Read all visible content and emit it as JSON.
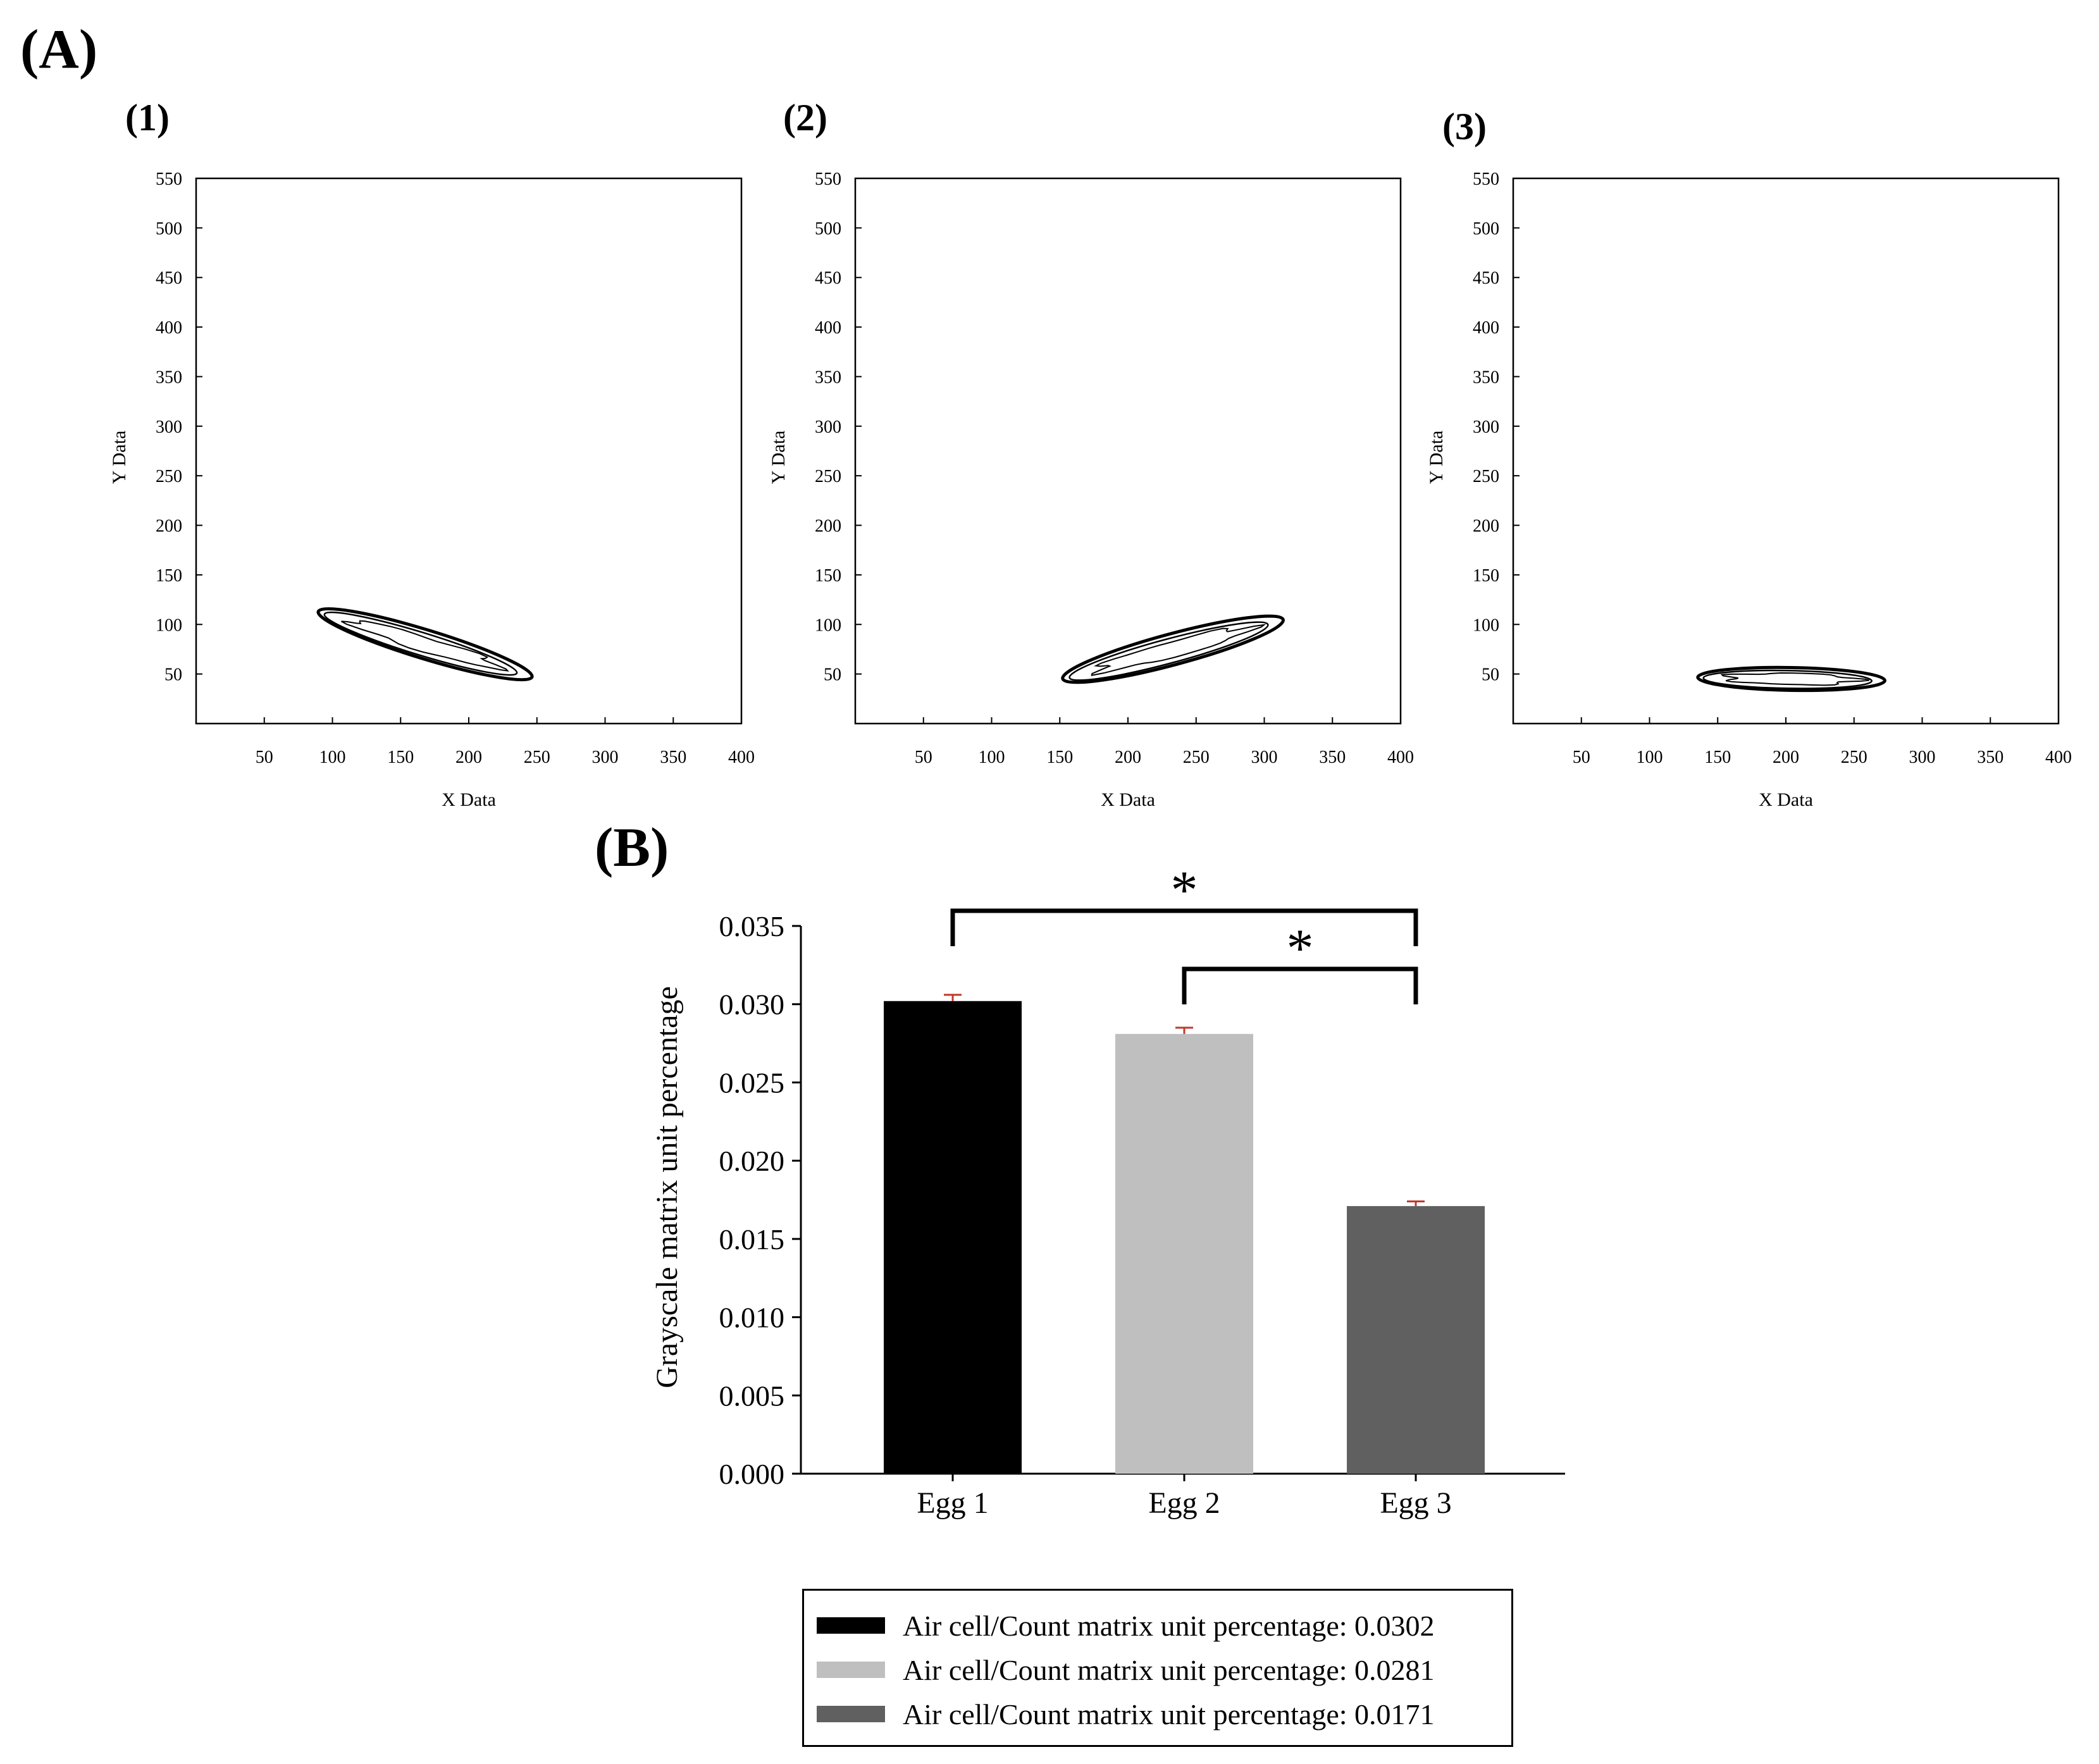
{
  "figure": {
    "panel_a_label": "(A)",
    "panel_b_label": "(B)",
    "contour_sublabels": [
      "(1)",
      "(2)",
      "(3)"
    ]
  },
  "chart_data": [
    {
      "type": "contour",
      "panel": "(1)",
      "xlabel": "X Data",
      "ylabel": "Y Data",
      "xlim": [
        0,
        400
      ],
      "ylim": [
        0,
        550
      ],
      "xticks": [
        50,
        100,
        150,
        200,
        250,
        300,
        350,
        400
      ],
      "yticks": [
        50,
        100,
        150,
        200,
        250,
        300,
        350,
        400,
        450,
        500,
        550
      ],
      "region": {
        "center": [
          168,
          80
        ],
        "x_range": [
          88,
          248
        ],
        "y_range": [
          55,
          108
        ],
        "tilt": "descending"
      }
    },
    {
      "type": "contour",
      "panel": "(2)",
      "xlabel": "X Data",
      "ylabel": "Y Data",
      "xlim": [
        0,
        400
      ],
      "ylim": [
        0,
        550
      ],
      "xticks": [
        50,
        100,
        150,
        200,
        250,
        300,
        350,
        400
      ],
      "yticks": [
        50,
        100,
        150,
        200,
        250,
        300,
        350,
        400,
        450,
        500,
        550
      ],
      "region": {
        "center": [
          233,
          75
        ],
        "x_range": [
          150,
          315
        ],
        "y_range": [
          45,
          102
        ],
        "tilt": "ascending"
      }
    },
    {
      "type": "contour",
      "panel": "(3)",
      "xlabel": "X Data",
      "ylabel": "Y Data",
      "xlim": [
        0,
        400
      ],
      "ylim": [
        0,
        550
      ],
      "xticks": [
        50,
        100,
        150,
        200,
        250,
        300,
        350,
        400
      ],
      "yticks": [
        50,
        100,
        150,
        200,
        250,
        300,
        350,
        400,
        450,
        500,
        550
      ],
      "region": {
        "center": [
          204,
          45
        ],
        "x_range": [
          133,
          273
        ],
        "y_range": [
          28,
          63
        ],
        "tilt": "flat"
      }
    },
    {
      "type": "bar",
      "panel": "(B)",
      "categories": [
        "Egg 1",
        "Egg 2",
        "Egg 3"
      ],
      "values": [
        0.0302,
        0.0281,
        0.0171
      ],
      "errors": [
        0.0004,
        0.0004,
        0.0003
      ],
      "colors": [
        "#000000",
        "#bfbfbf",
        "#606060"
      ],
      "error_color": "#c0392b",
      "ylabel": "Grayscale matrix unit percentage",
      "xlabel": "",
      "ylim": [
        0,
        0.035
      ],
      "yticks": [
        "0.000",
        "0.005",
        "0.010",
        "0.015",
        "0.020",
        "0.025",
        "0.030",
        "0.035"
      ],
      "significance": [
        {
          "from": "Egg 1",
          "to": "Egg 3",
          "label": "*"
        },
        {
          "from": "Egg 2",
          "to": "Egg 3",
          "label": "*"
        }
      ],
      "legend": [
        "Air cell/Count matrix unit percentage: 0.0302",
        "Air cell/Count matrix unit percentage: 0.0281",
        "Air cell/Count matrix unit percentage: 0.0171"
      ]
    }
  ]
}
